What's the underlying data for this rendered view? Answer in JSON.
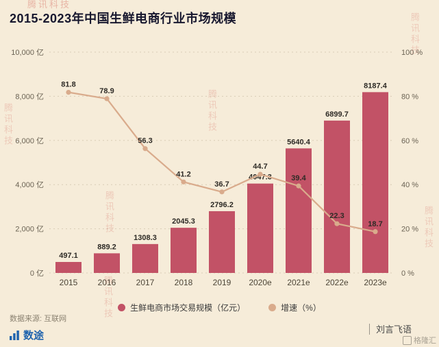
{
  "chart_data": {
    "type": "bar+line",
    "title": "2015-2023年中国生鲜电商行业市场规模",
    "categories": [
      "2015",
      "2016",
      "2017",
      "2018",
      "2019",
      "2020e",
      "2021e",
      "2022e",
      "2023e"
    ],
    "series": [
      {
        "name": "生鲜电商市场交易规模（亿元）",
        "type": "bar",
        "color": "#c25266",
        "values": [
          497.1,
          889.2,
          1308.3,
          2045.3,
          2796.2,
          4047.3,
          5640.4,
          6899.7,
          8187.4
        ]
      },
      {
        "name": "增速（%）",
        "type": "line",
        "color": "#d9ab8c",
        "values": [
          81.8,
          78.9,
          56.3,
          41.2,
          36.7,
          44.7,
          39.4,
          22.3,
          18.7
        ]
      }
    ],
    "left_axis": {
      "max": 10000,
      "ticks": [
        "0 亿",
        "2,000 亿",
        "4,000 亿",
        "6,000 亿",
        "8,000 亿",
        "10,000 亿"
      ]
    },
    "right_axis": {
      "max": 100,
      "ticks": [
        "0 %",
        "20 %",
        "40 %",
        "60 %",
        "80 %",
        "100 %"
      ]
    },
    "grid": true,
    "legend_position": "bottom"
  },
  "watermark": "腾讯科技",
  "footer": {
    "source": "数据来源: 互联网",
    "logo_text": "数途",
    "credit": "刘言飞语",
    "corner_logo": "格隆汇"
  }
}
